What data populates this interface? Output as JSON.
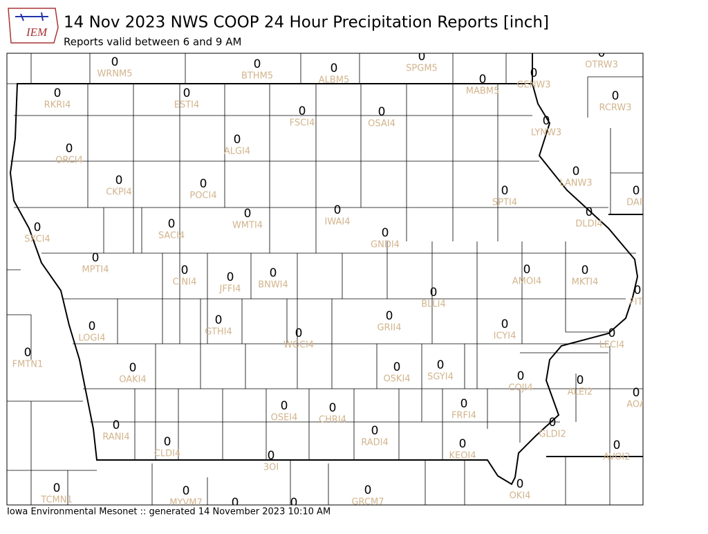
{
  "header": {
    "logo": "IEM",
    "title": "14 Nov 2023 NWS COOP 24 Hour Precipitation Reports [inch]",
    "subtitle": "Reports valid between 6 and 9 AM"
  },
  "stations": [
    {
      "id": "WRNM5",
      "value": 0
    },
    {
      "id": "BTHM5",
      "value": 0
    },
    {
      "id": "ALBM5",
      "value": 0
    },
    {
      "id": "SPGM5",
      "value": 0
    },
    {
      "id": "OTRW3",
      "value": 0
    },
    {
      "id": "MABM5",
      "value": 0
    },
    {
      "id": "GENW3",
      "value": 0
    },
    {
      "id": "RKRI4",
      "value": 0
    },
    {
      "id": "ESTI4",
      "value": 0
    },
    {
      "id": "RCRW3",
      "value": 0
    },
    {
      "id": "FSCI4",
      "value": 0
    },
    {
      "id": "OSAI4",
      "value": 0
    },
    {
      "id": "LYNW3",
      "value": 0
    },
    {
      "id": "ALGI4",
      "value": 0
    },
    {
      "id": "ORCI4",
      "value": 0
    },
    {
      "id": "LANW3",
      "value": 0
    },
    {
      "id": "CKPI4",
      "value": 0
    },
    {
      "id": "POCI4",
      "value": 0
    },
    {
      "id": "SPTI4",
      "value": 0
    },
    {
      "id": "DAR",
      "value": 0
    },
    {
      "id": "IWAI4",
      "value": 0
    },
    {
      "id": "DLDI4",
      "value": 0
    },
    {
      "id": "WMTI4",
      "value": 0
    },
    {
      "id": "SXCI4",
      "value": 0
    },
    {
      "id": "SACI4",
      "value": 0
    },
    {
      "id": "GNDI4",
      "value": 0
    },
    {
      "id": "MPTI4",
      "value": 0
    },
    {
      "id": "AMOI4",
      "value": 0
    },
    {
      "id": "CINI4",
      "value": 0
    },
    {
      "id": "MKTI4",
      "value": 0
    },
    {
      "id": "BNWI4",
      "value": 0
    },
    {
      "id": "JFFI4",
      "value": 0
    },
    {
      "id": "FITI",
      "value": 0
    },
    {
      "id": "BLLI4",
      "value": 0
    },
    {
      "id": "GRII4",
      "value": 0
    },
    {
      "id": "GTHI4",
      "value": 0
    },
    {
      "id": "ICYI4",
      "value": 0
    },
    {
      "id": "LECI4",
      "value": 0
    },
    {
      "id": "LOGI4",
      "value": 0
    },
    {
      "id": "WGCI4",
      "value": 0
    },
    {
      "id": "FMTN1",
      "value": 0
    },
    {
      "id": "SGYI4",
      "value": 0
    },
    {
      "id": "OAKI4",
      "value": 0
    },
    {
      "id": "OSKI4",
      "value": 0
    },
    {
      "id": "COJI4",
      "value": 0
    },
    {
      "id": "ALEI2",
      "value": 0
    },
    {
      "id": "AOA",
      "value": 0
    },
    {
      "id": "OSEI4",
      "value": 0
    },
    {
      "id": "CHRI4",
      "value": 0
    },
    {
      "id": "FRFI4",
      "value": 0
    },
    {
      "id": "RANI4",
      "value": 0
    },
    {
      "id": "GLDI2",
      "value": 0
    },
    {
      "id": "RADI4",
      "value": 0
    },
    {
      "id": "CLDI4",
      "value": 0
    },
    {
      "id": "KEOI4",
      "value": 0
    },
    {
      "id": "AVOI2",
      "value": 0
    },
    {
      "id": "3OI",
      "value": 0
    },
    {
      "id": "TCMN1",
      "value": 0
    },
    {
      "id": "MYVM7",
      "value": 0
    },
    {
      "id": "GRCM7",
      "value": 0
    },
    {
      "id": "OKI4",
      "value": 0
    },
    {
      "value": 0
    },
    {
      "value": 0
    }
  ],
  "footer": "Iowa Environmental Mesonet :: generated 14 November 2023 10:10 AM"
}
